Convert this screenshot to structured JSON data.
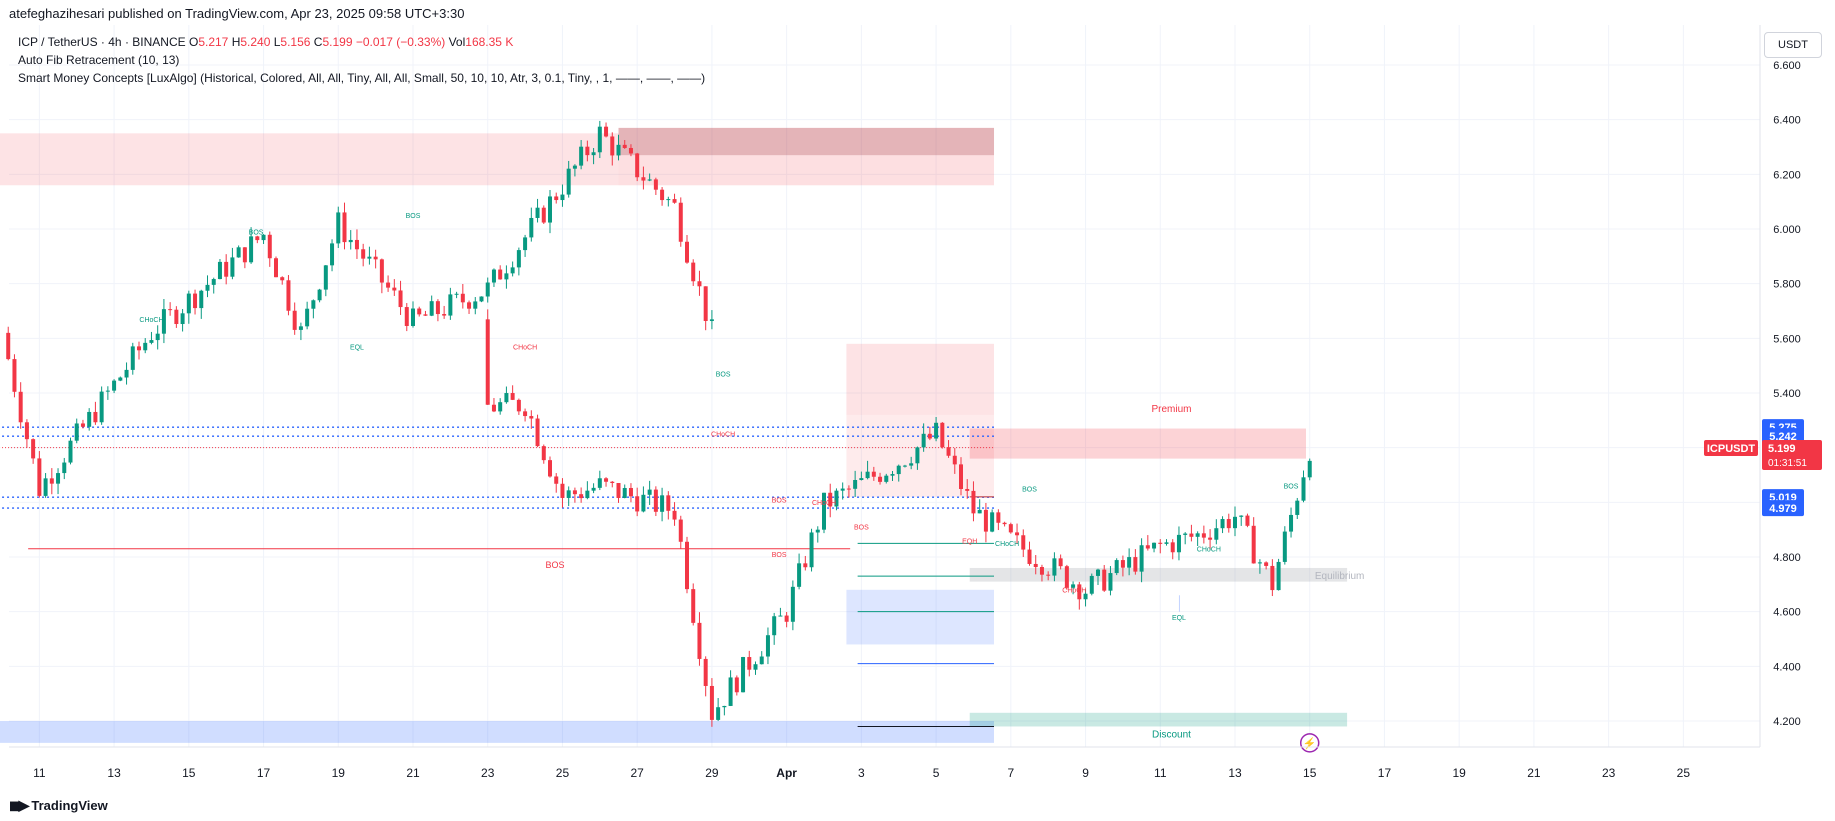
{
  "header": {
    "publisher_text": "atefeghazihesari published on TradingView.com, Apr 23, 2025 09:58 UTC+3:30"
  },
  "legend": {
    "symbol": "ICP / TetherUS · 4h · BINANCE",
    "o_label": "O",
    "o_value": "5.217",
    "h_label": "H",
    "h_value": "5.240",
    "l_label": "L",
    "l_value": "5.156",
    "c_label": "C",
    "c_value": "5.199",
    "change": "−0.017 (−0.33%)",
    "vol_label": "Vol",
    "vol_value": "168.35 K",
    "indicator1": "Auto Fib Retracement (10, 13)",
    "indicator2": "Smart Money Concepts [LuxAlgo] (Historical, Colored, All, All, Tiny, All, All, Small, 50, 10, 10, Atr, 3, 0.1, Tiny, , 1, ——, ——, ——)"
  },
  "currency_button": "USDT",
  "footer": {
    "brand": "TradingView"
  },
  "colors": {
    "up": "#089981",
    "down": "#f23645",
    "fib_blue": "#2962ff"
  },
  "chart_data": {
    "type": "candlestick",
    "symbol": "ICPUSDT",
    "timeframe": "4h",
    "ylim": [
      4.12,
      6.66
    ],
    "y_ticks": [
      "6.600",
      "6.400",
      "6.200",
      "6.000",
      "5.800",
      "5.600",
      "5.400",
      "5.200",
      "5.000",
      "4.800",
      "4.600",
      "4.400",
      "4.200"
    ],
    "x_ticks": [
      "11",
      "13",
      "15",
      "17",
      "19",
      "21",
      "23",
      "25",
      "27",
      "29",
      "Apr",
      "3",
      "5",
      "7",
      "9",
      "11",
      "13",
      "15",
      "17",
      "19",
      "21",
      "23",
      "25"
    ],
    "last_price": {
      "symbol": "ICPUSDT",
      "price": "5.199",
      "countdown": "01:31:51"
    },
    "price_labels": [
      "5.275",
      "5.242",
      "5.019",
      "4.979"
    ],
    "zone_labels": {
      "premium": "Premium",
      "equilibrium": "Equilibrium",
      "discount": "Discount"
    },
    "structure_labels": [
      "CHoCH",
      "BOS",
      "EQL",
      "BOS",
      "CHoCH",
      "BOS",
      "CHoCH",
      "BOS",
      "CHoCH",
      "BOS",
      "BOS",
      "EQH",
      "CHoCH",
      "BOS",
      "CHoCH",
      "CHoCH",
      "EQL",
      "BOS",
      "BOS"
    ],
    "key_points": [
      {
        "x": "Mar 10",
        "close": 5.62
      },
      {
        "x": "Mar 11",
        "close": 5.05
      },
      {
        "x": "Mar 14",
        "close": 5.62
      },
      {
        "x": "Mar 17",
        "close": 5.98
      },
      {
        "x": "Mar 18",
        "close": 5.62
      },
      {
        "x": "Mar 19",
        "close": 6.02
      },
      {
        "x": "Mar 21",
        "close": 5.66
      },
      {
        "x": "Mar 23",
        "close": 5.78
      },
      {
        "x": "Mar 26",
        "close": 6.35
      },
      {
        "x": "Mar 28",
        "close": 6.08
      },
      {
        "x": "Mar 29",
        "close": 5.62
      },
      {
        "x": "Apr 1",
        "close": 5.35
      },
      {
        "x": "Apr 2",
        "close": 5.36
      },
      {
        "x": "Apr 3",
        "close": 5.02
      },
      {
        "x": "Apr 4",
        "close": 5.06
      },
      {
        "x": "Apr 6",
        "close": 4.97
      },
      {
        "x": "Apr 7",
        "close": 4.23
      },
      {
        "x": "Apr 9",
        "close": 4.6
      },
      {
        "x": "Apr 10",
        "close": 4.99
      },
      {
        "x": "Apr 12",
        "close": 5.15
      },
      {
        "x": "Apr 13",
        "close": 5.25
      },
      {
        "x": "Apr 14",
        "close": 4.97
      },
      {
        "x": "Apr 15",
        "close": 4.86
      },
      {
        "x": "Apr 17",
        "close": 4.68
      },
      {
        "x": "Apr 19",
        "close": 4.84
      },
      {
        "x": "Apr 20",
        "close": 4.88
      },
      {
        "x": "Apr 21",
        "close": 4.95
      },
      {
        "x": "Apr 22",
        "close": 4.7
      },
      {
        "x": "Apr 23",
        "close": 5.199
      }
    ]
  }
}
